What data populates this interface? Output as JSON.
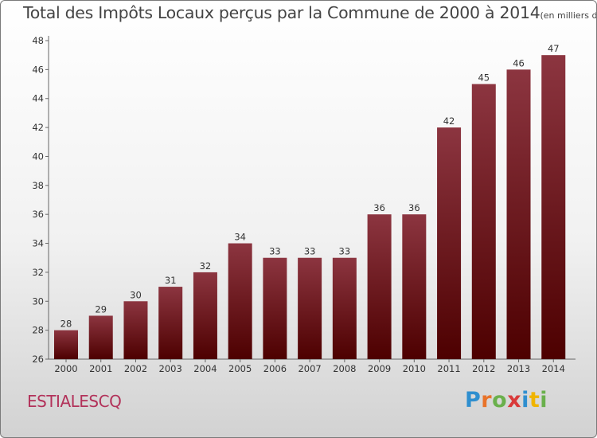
{
  "title": "Total des Impôts Locaux perçus par la Commune de 2000 à 2014",
  "title_unit": "(en milliers d'€)",
  "commune": "ESTIALESCQ",
  "logo": {
    "text": "Proxiti",
    "letter_colors": [
      "#2f8fcf",
      "#e8732a",
      "#6ab04c",
      "#d93a3a",
      "#2f8fcf",
      "#f0b400",
      "#6ab04c"
    ]
  },
  "colors": {
    "bar_top": "#8c3540",
    "bar_bottom": "#4d0000",
    "commune": "#b2325a"
  },
  "chart_data": {
    "type": "bar",
    "title": "Total des Impôts Locaux perçus par la Commune de 2000 à 2014",
    "categories": [
      "2000",
      "2001",
      "2002",
      "2003",
      "2004",
      "2005",
      "2006",
      "2007",
      "2008",
      "2009",
      "2010",
      "2011",
      "2012",
      "2013",
      "2014"
    ],
    "values": [
      28,
      29,
      30,
      31,
      32,
      34,
      33,
      33,
      33,
      36,
      36,
      42,
      45,
      46,
      47
    ],
    "ylim": [
      26,
      48
    ],
    "yticks": [
      26,
      28,
      30,
      32,
      34,
      36,
      38,
      40,
      42,
      44,
      46,
      48
    ],
    "xlabel": "",
    "ylabel": "",
    "grid": false,
    "data_labels": true
  }
}
